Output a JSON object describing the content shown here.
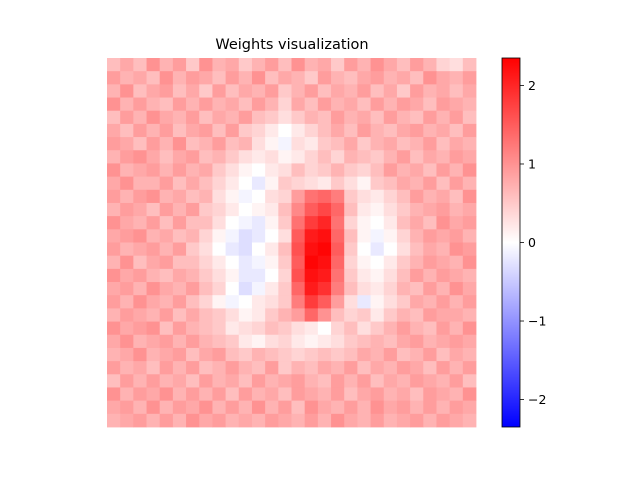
{
  "chart_data": {
    "type": "heatmap",
    "title": "Weights visualization",
    "xlabel": "",
    "ylabel": "",
    "grid": false,
    "rows": 28,
    "cols": 28,
    "colormap": "bwr",
    "colormap_colors": {
      "low": "#0000ff",
      "mid": "#ffffff",
      "high": "#ff0000"
    },
    "vmin": -2.35,
    "vmax": 2.35,
    "colorbar_ticks": [
      2,
      1,
      0,
      -1,
      -2
    ],
    "colorbar_tick_labels": [
      "2",
      "1",
      "0",
      "−1",
      "−2"
    ],
    "values": [
      [
        0.6,
        0.8,
        0.6,
        1.0,
        0.7,
        0.9,
        0.5,
        1.0,
        0.7,
        0.8,
        0.5,
        0.7,
        0.9,
        0.6,
        1.0,
        0.7,
        0.8,
        0.5,
        0.9,
        0.7,
        1.0,
        0.8,
        0.6,
        0.9,
        0.7,
        0.4,
        0.3,
        0.6
      ],
      [
        0.9,
        0.7,
        0.8,
        0.6,
        1.0,
        0.7,
        0.9,
        0.8,
        0.6,
        0.9,
        0.7,
        1.0,
        0.6,
        0.8,
        0.7,
        0.5,
        0.9,
        0.7,
        0.6,
        0.8,
        0.9,
        0.7,
        0.8,
        0.6,
        1.0,
        0.8,
        0.7,
        0.9
      ],
      [
        0.7,
        1.0,
        0.6,
        0.8,
        0.9,
        0.6,
        0.8,
        0.5,
        0.9,
        0.6,
        0.8,
        0.7,
        0.9,
        0.5,
        0.7,
        0.9,
        0.6,
        0.8,
        0.7,
        0.9,
        0.6,
        0.8,
        0.5,
        0.9,
        0.7,
        0.8,
        0.6,
        0.8
      ],
      [
        1.0,
        0.7,
        0.9,
        0.7,
        0.6,
        0.9,
        0.7,
        0.9,
        0.7,
        0.8,
        0.6,
        0.9,
        0.7,
        0.4,
        0.8,
        0.6,
        0.9,
        0.7,
        0.8,
        0.6,
        0.9,
        0.7,
        0.9,
        0.8,
        0.6,
        0.9,
        0.8,
        0.7
      ],
      [
        0.6,
        0.9,
        0.7,
        1.0,
        0.8,
        0.7,
        0.9,
        0.6,
        0.8,
        0.7,
        0.9,
        0.6,
        0.5,
        0.3,
        0.5,
        0.7,
        0.6,
        0.9,
        0.7,
        0.8,
        0.6,
        0.9,
        0.7,
        0.6,
        0.9,
        0.7,
        0.9,
        0.6
      ],
      [
        0.8,
        0.6,
        0.9,
        0.7,
        0.9,
        0.6,
        0.8,
        0.9,
        0.6,
        0.9,
        0.5,
        0.4,
        0.2,
        0.0,
        0.2,
        0.4,
        0.6,
        0.8,
        0.6,
        0.9,
        0.7,
        0.6,
        0.8,
        0.9,
        0.7,
        0.8,
        0.6,
        0.9
      ],
      [
        0.9,
        0.8,
        0.6,
        0.9,
        0.7,
        1.0,
        0.6,
        0.7,
        0.9,
        0.6,
        0.7,
        0.3,
        0.1,
        -0.1,
        0.3,
        0.2,
        0.5,
        0.6,
        0.8,
        0.5,
        0.7,
        0.8,
        0.6,
        0.7,
        0.9,
        0.6,
        0.8,
        0.7
      ],
      [
        0.7,
        0.9,
        1.0,
        0.8,
        0.6,
        0.8,
        0.9,
        0.6,
        0.7,
        0.5,
        0.3,
        0.2,
        0.3,
        0.1,
        0.2,
        0.4,
        0.6,
        0.4,
        0.7,
        0.6,
        0.5,
        0.7,
        0.9,
        0.6,
        0.8,
        0.7,
        0.9,
        0.8
      ],
      [
        1.0,
        0.7,
        0.8,
        0.9,
        0.7,
        0.9,
        0.7,
        0.8,
        0.5,
        0.3,
        0.1,
        0.0,
        0.2,
        0.3,
        0.6,
        0.4,
        0.5,
        0.7,
        0.5,
        0.4,
        0.6,
        0.9,
        0.7,
        0.8,
        0.6,
        0.9,
        0.7,
        1.0
      ],
      [
        0.8,
        1.0,
        0.7,
        0.7,
        0.9,
        0.6,
        0.8,
        0.6,
        0.4,
        0.2,
        0.0,
        -0.2,
        0.1,
        0.5,
        0.4,
        0.3,
        0.2,
        0.5,
        0.3,
        0.1,
        0.5,
        0.6,
        0.8,
        0.7,
        0.9,
        0.6,
        0.9,
        0.7
      ],
      [
        0.9,
        0.7,
        0.9,
        1.0,
        0.7,
        0.8,
        0.6,
        0.7,
        0.3,
        0.1,
        -0.1,
        0.0,
        0.3,
        0.4,
        0.9,
        1.3,
        1.4,
        1.2,
        0.5,
        0.3,
        0.2,
        0.4,
        0.6,
        0.9,
        0.7,
        0.8,
        0.6,
        1.0
      ],
      [
        0.7,
        0.9,
        0.8,
        0.6,
        0.9,
        0.7,
        0.9,
        0.5,
        0.4,
        0.2,
        0.0,
        0.1,
        0.2,
        0.6,
        1.1,
        1.5,
        1.7,
        1.4,
        0.6,
        0.2,
        0.1,
        0.3,
        0.5,
        0.7,
        0.8,
        0.9,
        0.7,
        0.8
      ],
      [
        1.0,
        0.8,
        0.7,
        0.9,
        0.6,
        0.9,
        0.6,
        0.6,
        0.3,
        0.0,
        -0.1,
        -0.2,
        0.1,
        0.5,
        1.3,
        1.8,
        2.0,
        1.3,
        0.4,
        0.1,
        0.0,
        0.2,
        0.6,
        0.8,
        0.6,
        1.0,
        0.8,
        0.9
      ],
      [
        0.8,
        0.9,
        1.0,
        0.7,
        0.8,
        0.6,
        0.7,
        0.4,
        0.1,
        -0.1,
        -0.3,
        -0.2,
        0.0,
        0.3,
        1.5,
        2.1,
        2.2,
        1.4,
        0.6,
        0.1,
        -0.1,
        0.1,
        0.4,
        0.7,
        0.9,
        0.8,
        0.9,
        0.7
      ],
      [
        0.9,
        0.7,
        0.8,
        0.9,
        0.7,
        0.9,
        0.5,
        0.3,
        0.0,
        -0.2,
        -0.3,
        0.0,
        0.2,
        0.6,
        1.6,
        2.2,
        2.3,
        1.5,
        0.5,
        0.0,
        -0.2,
        0.0,
        0.3,
        0.6,
        0.8,
        0.7,
        1.0,
        0.9
      ],
      [
        0.7,
        1.0,
        0.6,
        0.8,
        0.9,
        0.6,
        0.6,
        0.4,
        0.2,
        0.0,
        -0.2,
        -0.1,
        0.1,
        0.5,
        1.5,
        2.3,
        2.2,
        1.4,
        0.4,
        0.1,
        0.0,
        0.2,
        0.5,
        0.7,
        0.9,
        0.8,
        0.7,
        1.0
      ],
      [
        1.0,
        0.8,
        0.9,
        0.7,
        0.6,
        0.8,
        0.7,
        0.5,
        0.3,
        0.1,
        -0.2,
        -0.2,
        0.0,
        0.4,
        1.6,
        2.2,
        2.1,
        1.3,
        0.5,
        0.2,
        0.1,
        0.3,
        0.6,
        0.9,
        0.7,
        0.9,
        0.8,
        0.7
      ],
      [
        0.8,
        0.9,
        0.7,
        1.0,
        0.8,
        0.7,
        0.9,
        0.6,
        0.4,
        0.0,
        -0.3,
        -0.1,
        0.2,
        0.5,
        1.4,
        2.1,
        1.9,
        1.2,
        0.6,
        0.3,
        0.2,
        0.4,
        0.7,
        0.6,
        0.9,
        0.7,
        1.0,
        0.8
      ],
      [
        0.9,
        0.7,
        1.0,
        0.8,
        0.7,
        0.9,
        0.6,
        0.4,
        0.1,
        -0.1,
        0.0,
        0.2,
        0.3,
        0.5,
        1.2,
        1.8,
        1.5,
        0.9,
        0.3,
        -0.2,
        0.1,
        0.3,
        0.5,
        0.8,
        0.7,
        0.9,
        0.7,
        0.9
      ],
      [
        0.7,
        0.9,
        0.8,
        0.7,
        0.9,
        0.6,
        0.8,
        0.6,
        0.5,
        0.3,
        0.1,
        0.2,
        0.5,
        0.7,
        0.9,
        1.4,
        1.0,
        0.6,
        0.4,
        0.5,
        0.2,
        0.5,
        0.7,
        0.6,
        0.9,
        0.8,
        0.8,
        0.7
      ],
      [
        1.0,
        0.8,
        0.9,
        1.0,
        0.6,
        0.9,
        0.7,
        0.6,
        0.5,
        0.2,
        0.3,
        0.4,
        0.6,
        0.5,
        0.3,
        0.2,
        0.0,
        0.4,
        0.6,
        0.3,
        0.5,
        0.7,
        0.9,
        0.7,
        0.6,
        0.9,
        0.7,
        1.0
      ],
      [
        0.8,
        1.0,
        0.7,
        0.8,
        0.9,
        0.7,
        0.9,
        0.7,
        0.6,
        0.5,
        0.2,
        0.1,
        0.3,
        0.4,
        0.2,
        0.1,
        0.2,
        0.3,
        0.5,
        0.6,
        0.7,
        0.6,
        0.8,
        0.9,
        0.7,
        0.8,
        0.9,
        0.8
      ],
      [
        0.7,
        0.8,
        1.0,
        0.7,
        0.8,
        0.9,
        0.6,
        0.8,
        0.9,
        0.6,
        0.5,
        0.7,
        0.6,
        0.5,
        0.4,
        0.5,
        0.6,
        0.5,
        0.6,
        0.8,
        0.7,
        0.9,
        0.6,
        0.7,
        0.9,
        0.6,
        0.8,
        0.7
      ],
      [
        0.9,
        0.7,
        0.8,
        0.6,
        0.9,
        0.7,
        0.9,
        0.6,
        0.7,
        0.9,
        0.7,
        0.6,
        0.9,
        0.5,
        0.7,
        0.6,
        0.8,
        0.7,
        0.9,
        0.6,
        0.8,
        0.7,
        0.9,
        0.8,
        0.6,
        0.9,
        0.7,
        0.9
      ],
      [
        0.6,
        0.9,
        0.7,
        0.9,
        0.7,
        0.8,
        0.6,
        0.9,
        0.7,
        0.8,
        0.6,
        0.9,
        0.7,
        0.8,
        0.9,
        0.7,
        0.6,
        0.9,
        0.7,
        0.9,
        0.6,
        0.8,
        0.7,
        0.9,
        0.8,
        0.7,
        0.9,
        0.6
      ],
      [
        1.0,
        0.7,
        0.9,
        0.8,
        1.0,
        0.7,
        0.9,
        0.7,
        0.9,
        0.6,
        0.9,
        0.7,
        0.8,
        0.6,
        0.9,
        0.8,
        0.7,
        0.9,
        0.6,
        0.8,
        0.9,
        0.7,
        0.8,
        0.6,
        0.9,
        0.8,
        0.7,
        1.0
      ],
      [
        0.8,
        0.9,
        0.7,
        1.0,
        0.7,
        0.9,
        0.8,
        1.0,
        0.7,
        0.9,
        0.7,
        1.0,
        0.7,
        0.9,
        0.6,
        1.0,
        0.8,
        0.7,
        0.9,
        0.7,
        1.0,
        0.8,
        0.9,
        0.7,
        0.9,
        0.7,
        0.9,
        0.8
      ],
      [
        0.7,
        0.8,
        0.9,
        0.7,
        0.9,
        0.7,
        1.0,
        0.8,
        0.9,
        0.7,
        0.8,
        0.7,
        0.9,
        0.8,
        0.7,
        0.9,
        0.7,
        1.0,
        0.8,
        0.7,
        0.9,
        0.7,
        0.8,
        0.9,
        0.7,
        0.9,
        0.8,
        0.7
      ]
    ]
  }
}
